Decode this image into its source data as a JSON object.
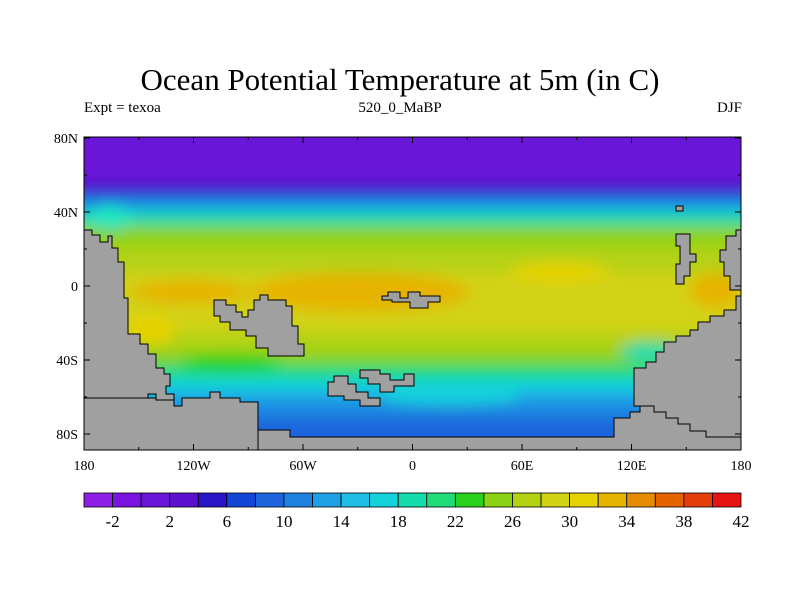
{
  "title": "Ocean Potential Temperature at 5m (in C)",
  "subtitle_left": "Expt = texoa",
  "subtitle_center": "520_0_MaBP",
  "subtitle_right": "DJF",
  "x_ticks": [
    {
      "lon": -180,
      "label": "180"
    },
    {
      "lon": -120,
      "label": "120W"
    },
    {
      "lon": -60,
      "label": "60W"
    },
    {
      "lon": 0,
      "label": "0"
    },
    {
      "lon": 60,
      "label": "60E"
    },
    {
      "lon": 120,
      "label": "120E"
    },
    {
      "lon": 180,
      "label": "180"
    }
  ],
  "y_ticks": [
    {
      "lat": 80,
      "label": "80N"
    },
    {
      "lat": 40,
      "label": "40N"
    },
    {
      "lat": 0,
      "label": "0"
    },
    {
      "lat": -40,
      "label": "40S"
    },
    {
      "lat": -80,
      "label": "80S"
    }
  ],
  "colorbar": {
    "colors": [
      "#8c1ee6",
      "#7a14e0",
      "#6a14d8",
      "#5a10cc",
      "#2a14c8",
      "#1446d6",
      "#1e64dc",
      "#1e82e0",
      "#1ea0e6",
      "#1ebee6",
      "#14d2dc",
      "#14dcaa",
      "#1edc78",
      "#28d21e",
      "#8cd214",
      "#b4d214",
      "#d2d214",
      "#e6d200",
      "#e6b400",
      "#e68c00",
      "#e66400",
      "#e63c0a",
      "#e61414"
    ],
    "labels": [
      "-2",
      "2",
      "6",
      "10",
      "14",
      "18",
      "22",
      "26",
      "30",
      "34",
      "38",
      "42"
    ]
  },
  "land_color": "#a0a0a0"
}
